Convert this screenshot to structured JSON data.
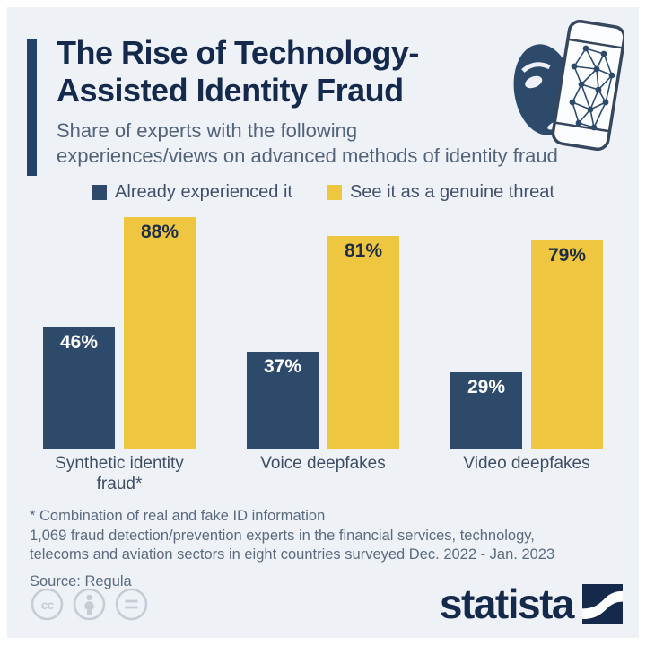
{
  "page": {
    "background": "#ffffff",
    "card_background": "#eef2f7"
  },
  "header": {
    "title_lines": [
      "The Rise of Technology-",
      "Assisted Identity Fraud"
    ],
    "subtitle_lines": [
      "Share of experts with the following",
      "experiences/views on advanced methods of identity fraud"
    ],
    "accent_color": "#24436a",
    "icon": "face-mask-smartphone-recognition-icon"
  },
  "chart_data": {
    "type": "bar",
    "title": "The Rise of Technology-Assisted Identity Fraud",
    "subtitle": "Share of experts with the following experiences/views on advanced methods of identity fraud",
    "categories": [
      "Synthetic identity fraud*",
      "Voice deepfakes",
      "Video deepfakes"
    ],
    "series": [
      {
        "name": "Already experienced it",
        "color": "#2e4a6b",
        "values": [
          46,
          37,
          29
        ]
      },
      {
        "name": "See it as a genuine threat",
        "color": "#eec640",
        "values": [
          88,
          81,
          79
        ]
      }
    ],
    "value_suffix": "%",
    "ylim": [
      0,
      100
    ],
    "grid": false,
    "legend_position": "top",
    "data_labels": "inside-top"
  },
  "footer": {
    "footnote": "* Combination of real and fake ID information",
    "description": "1,069 fraud detection/prevention experts in the financial services, technology, telecoms and aviation sectors in eight countries surveyed Dec. 2022 - Jan. 2023",
    "source": "Source: Regula",
    "license_icons": [
      "cc-icon",
      "attribution-icon",
      "equals-icon"
    ],
    "brand": "statista"
  }
}
